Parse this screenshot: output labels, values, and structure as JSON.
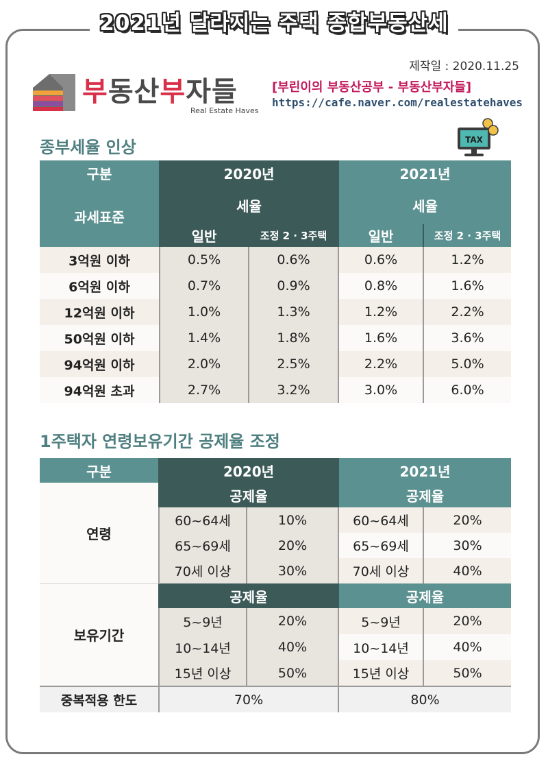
{
  "header": {
    "title": "2021년 달라지는 주택 종합부동산세",
    "made_date": "제작일 : 2020.11.25",
    "brand_part1": "부",
    "brand_part2": "동산",
    "brand_part3": "부",
    "brand_part4": "자들",
    "brand_sub": "Real Estate Haves",
    "cafe_name": "[부린이의 부동산공부 - 부동산부자들]",
    "cafe_url": "https://cafe.naver.com/realestatehaves",
    "tax_icon_label": "TAX"
  },
  "table1": {
    "section_title": "종부세율 인상",
    "h_category": "구분",
    "h_2020": "2020년",
    "h_2021": "2021년",
    "h_base": "과세표준",
    "h_rate_2020": "세율",
    "h_rate_2021": "세율",
    "h_general_2020": "일반",
    "h_adjusted_2020": "조정 2 · 3주택",
    "h_general_2021": "일반",
    "h_adjusted_2021": "조정 2 · 3주택",
    "rows": [
      {
        "base": "3억원 이하",
        "g2020": "0.5%",
        "a2020": "0.6%",
        "g2021": "0.6%",
        "a2021": "1.2%"
      },
      {
        "base": "6억원 이하",
        "g2020": "0.7%",
        "a2020": "0.9%",
        "g2021": "0.8%",
        "a2021": "1.6%"
      },
      {
        "base": "12억원 이하",
        "g2020": "1.0%",
        "a2020": "1.3%",
        "g2021": "1.2%",
        "a2021": "2.2%"
      },
      {
        "base": "50억원 이하",
        "g2020": "1.4%",
        "a2020": "1.8%",
        "g2021": "1.6%",
        "a2021": "3.6%"
      },
      {
        "base": "94억원 이하",
        "g2020": "2.0%",
        "a2020": "2.5%",
        "g2021": "2.2%",
        "a2021": "5.0%"
      },
      {
        "base": "94억원 초과",
        "g2020": "2.7%",
        "a2020": "3.2%",
        "g2021": "3.0%",
        "a2021": "6.0%"
      }
    ]
  },
  "table2": {
    "section_title": "1주택자 연령보유기간 공제율 조정",
    "h_category": "구분",
    "h_2020": "2020년",
    "h_2021": "2021년",
    "h_deduction_a2020": "공제율",
    "h_deduction_a2021": "공제율",
    "h_deduction_b2020": "공제율",
    "h_deduction_b2021": "공제율",
    "age_label": "연령",
    "age_rows": [
      {
        "k2020": "60~64세",
        "v2020": "10%",
        "k2021": "60~64세",
        "v2021": "20%"
      },
      {
        "k2020": "65~69세",
        "v2020": "20%",
        "k2021": "65~69세",
        "v2021": "30%"
      },
      {
        "k2020": "70세 이상",
        "v2020": "30%",
        "k2021": "70세 이상",
        "v2021": "40%"
      }
    ],
    "hold_label": "보유기간",
    "hold_rows": [
      {
        "k2020": "5~9년",
        "v2020": "20%",
        "k2021": "5~9년",
        "v2021": "20%"
      },
      {
        "k2020": "10~14년",
        "v2020": "40%",
        "k2021": "10~14년",
        "v2021": "40%"
      },
      {
        "k2020": "15년 이상",
        "v2020": "50%",
        "k2021": "15년 이상",
        "v2021": "50%"
      }
    ],
    "limit_label": "중복적용 한도",
    "limit_2020": "70%",
    "limit_2021": "80%"
  },
  "colors": {
    "teal": "#5b9190",
    "dark_teal": "#3c5a58",
    "brand_red": "#d9304a",
    "cafe_pink": "#c2185b"
  }
}
